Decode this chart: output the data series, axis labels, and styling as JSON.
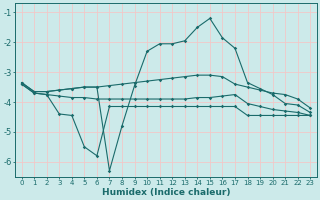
{
  "xlabel": "Humidex (Indice chaleur)",
  "xlim": [
    -0.5,
    23.5
  ],
  "ylim": [
    -6.5,
    -0.7
  ],
  "yticks": [
    -1,
    -2,
    -3,
    -4,
    -5,
    -6
  ],
  "xticks": [
    0,
    1,
    2,
    3,
    4,
    5,
    6,
    7,
    8,
    9,
    10,
    11,
    12,
    13,
    14,
    15,
    16,
    17,
    18,
    19,
    20,
    21,
    22,
    23
  ],
  "xtick_labels": [
    "0",
    "1",
    "2",
    "3",
    "4",
    "5",
    "6",
    "7",
    "8",
    "9",
    "10",
    "11",
    "12",
    "13",
    "14",
    "15",
    "16",
    "17",
    "18",
    "19",
    "20",
    "21",
    "22",
    "23"
  ],
  "bg_color": "#cceaea",
  "grid_color": "#f2c8c8",
  "line_color": "#1a6b6b",
  "line1_y": [
    -3.35,
    -3.65,
    -3.65,
    -3.6,
    -3.55,
    -3.5,
    -3.5,
    -3.45,
    -3.4,
    -3.35,
    -3.3,
    -3.25,
    -3.2,
    -3.15,
    -3.1,
    -3.1,
    -3.15,
    -3.4,
    -3.5,
    -3.6,
    -3.7,
    -3.75,
    -3.9,
    -4.2
  ],
  "line2_y": [
    -3.35,
    -3.65,
    -3.65,
    -3.6,
    -3.55,
    -3.5,
    -3.5,
    -6.3,
    -4.8,
    -3.45,
    -2.3,
    -2.05,
    -2.05,
    -1.95,
    -1.5,
    -1.2,
    -1.85,
    -2.2,
    -3.35,
    -3.55,
    -3.75,
    -4.05,
    -4.1,
    -4.35
  ],
  "line3_y": [
    -3.4,
    -3.7,
    -3.75,
    -3.8,
    -3.85,
    -3.85,
    -3.9,
    -3.9,
    -3.9,
    -3.9,
    -3.9,
    -3.9,
    -3.9,
    -3.9,
    -3.85,
    -3.85,
    -3.8,
    -3.75,
    -4.05,
    -4.15,
    -4.25,
    -4.3,
    -4.35,
    -4.45
  ],
  "line4_y": [
    -3.4,
    -3.7,
    -3.75,
    -4.4,
    -4.45,
    -5.5,
    -5.8,
    -4.15,
    -4.15,
    -4.15,
    -4.15,
    -4.15,
    -4.15,
    -4.15,
    -4.15,
    -4.15,
    -4.15,
    -4.15,
    -4.45,
    -4.45,
    -4.45,
    -4.45,
    -4.45,
    -4.45
  ]
}
